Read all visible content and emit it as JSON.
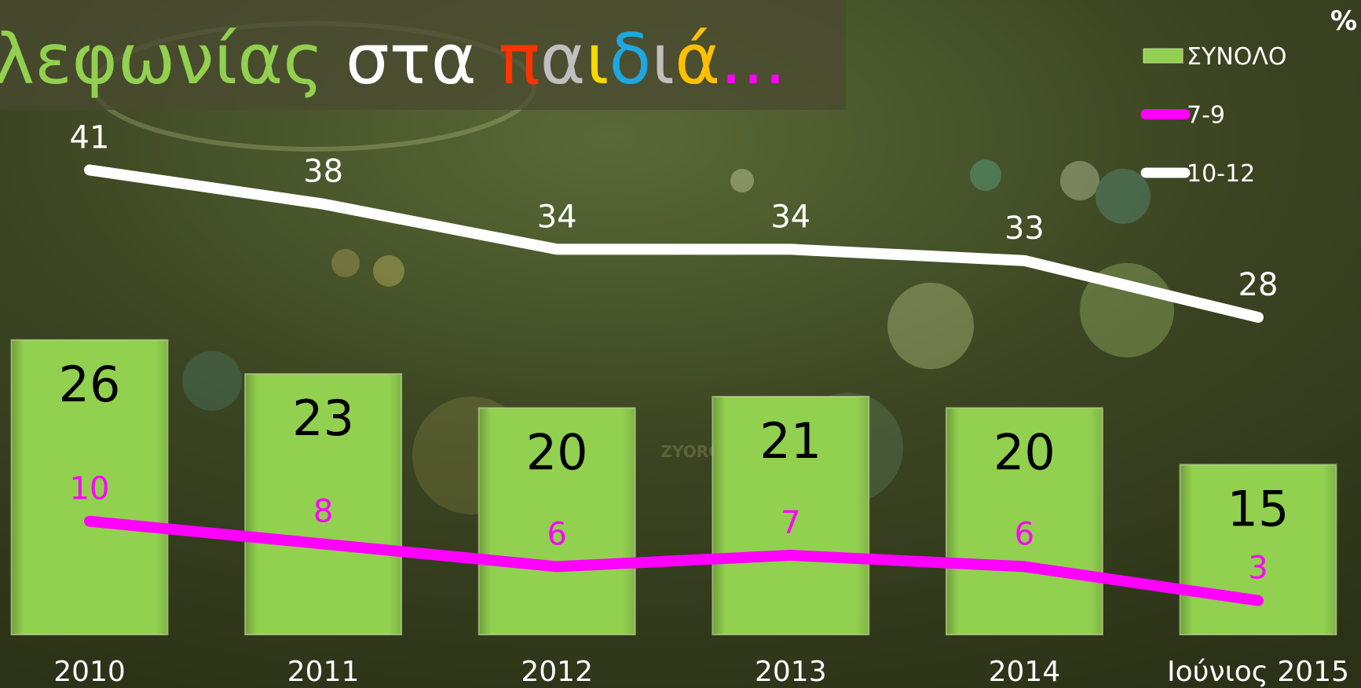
{
  "chart_data": {
    "type": "bar_line",
    "title_parts": [
      {
        "text": "λεφωνίας ",
        "color": "#92d050"
      },
      {
        "text": "στα ",
        "color": "#ffffff"
      },
      {
        "text": "π",
        "color": "#ff3300"
      },
      {
        "text": "α",
        "color": "#bfbfbf"
      },
      {
        "text": "ι",
        "color": "#ffd700"
      },
      {
        "text": "δ",
        "color": "#1ea7e1"
      },
      {
        "text": "ι",
        "color": "#bfbfbf"
      },
      {
        "text": "ά",
        "color": "#ffc000"
      },
      {
        "text": "...",
        "color": "#ff00ff"
      }
    ],
    "unit": "%",
    "watermark": "ZYORG",
    "categories": [
      "2010",
      "2011",
      "2012",
      "2013",
      "2014",
      "Ιούνιος 2015"
    ],
    "series": [
      {
        "name": "ΣΥΝΟΛΟ",
        "kind": "bar",
        "color": "#92d050",
        "values": [
          26,
          23,
          20,
          21,
          20,
          15
        ]
      },
      {
        "name": "7-9",
        "kind": "line",
        "color": "#ff00ff",
        "values": [
          10,
          8,
          6,
          7,
          6,
          3
        ]
      },
      {
        "name": "10-12",
        "kind": "line",
        "color": "#ffffff",
        "values": [
          41,
          38,
          34,
          34,
          33,
          28
        ]
      }
    ],
    "ylim": [
      0,
      56
    ],
    "legend": "top-right"
  }
}
